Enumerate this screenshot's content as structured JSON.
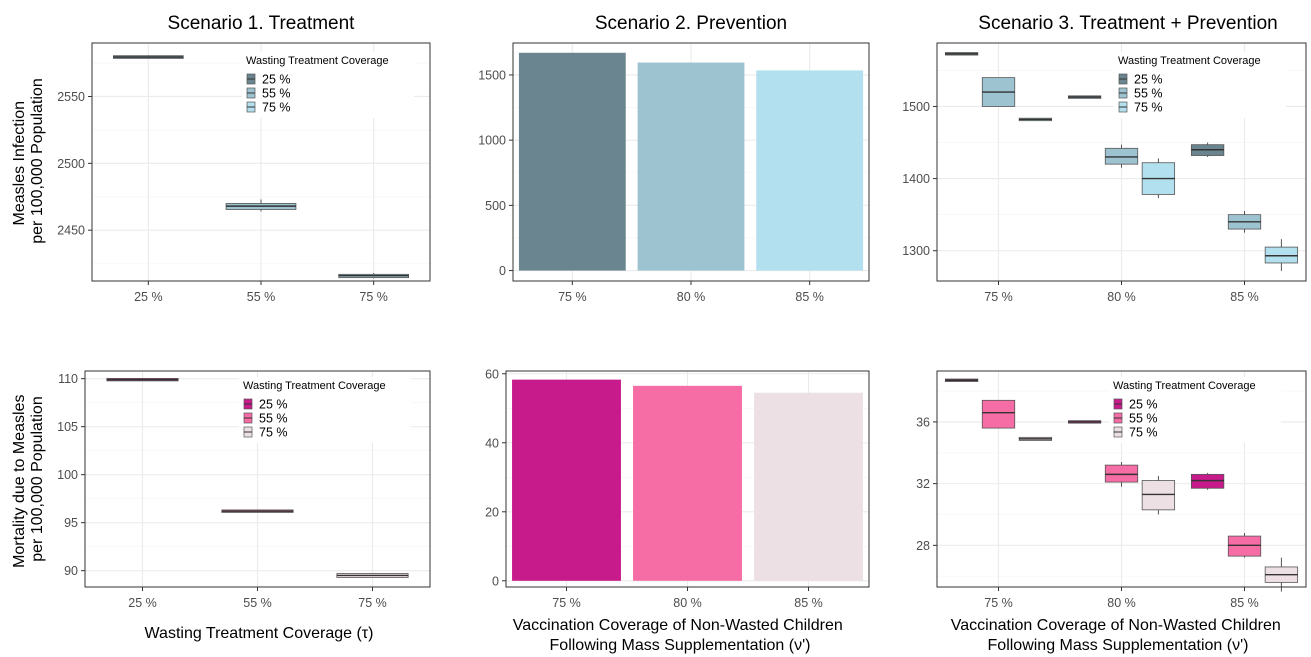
{
  "colors": {
    "infection": [
      "#6b8590",
      "#9dc3d1",
      "#b3e0ee"
    ],
    "mortality": [
      "#c71b8b",
      "#f66ca4",
      "#ede0e5"
    ]
  },
  "row_labels": {
    "infection": [
      "Measles Infection",
      "per 100,000 Population"
    ],
    "mortality": [
      "Mortality due to Measles",
      "per 100,000 Population"
    ]
  },
  "column_titles": [
    "Scenario 1. Treatment",
    "Scenario 2. Prevention",
    "Scenario 3. Treatment + Prevention"
  ],
  "x_axis_labels": {
    "treatment": [
      "Wasting Treatment Coverage (τ)"
    ],
    "vaccination": [
      "Vaccination Coverage of Non-Wasted Children",
      "Following Mass Supplementation (ν')"
    ]
  },
  "legend": {
    "title": "Wasting Treatment Coverage",
    "entries": [
      "25 %",
      "55 %",
      "75 %"
    ]
  },
  "chart_data": [
    {
      "id": "s1-infection",
      "type": "box",
      "title": "Scenario 1. Treatment",
      "categories": [
        "25 %",
        "55 %",
        "75 %"
      ],
      "ylim": [
        2412,
        2590
      ],
      "yticks": [
        2450,
        2500,
        2550
      ],
      "legend": true,
      "legend_position": "top-right",
      "boxes": [
        {
          "category": "25 %",
          "fill": 0,
          "q1": 2578.5,
          "median": 2579.5,
          "q3": 2580.5,
          "min": 2578.5,
          "max": 2580.5
        },
        {
          "category": "55 %",
          "fill": 1,
          "q1": 2465.5,
          "median": 2468,
          "q3": 2470,
          "min": 2464,
          "max": 2473
        },
        {
          "category": "75 %",
          "fill": 1,
          "q1": 2414.5,
          "median": 2416,
          "q3": 2417,
          "min": 2414,
          "max": 2418
        }
      ]
    },
    {
      "id": "s2-infection",
      "type": "bar",
      "title": "Scenario 2. Prevention",
      "categories": [
        "75 %",
        "80 %",
        "85 %"
      ],
      "values": [
        1670,
        1595,
        1535
      ],
      "ylim": [
        -80,
        1745
      ],
      "yticks": [
        0,
        500,
        1000,
        1500
      ]
    },
    {
      "id": "s3-infection",
      "type": "box",
      "title": "Scenario 3. Treatment + Prevention",
      "categories": [
        "75 %",
        "80 %",
        "85 %"
      ],
      "ylim": [
        1258,
        1588
      ],
      "yticks": [
        1300,
        1400,
        1500
      ],
      "legend": true,
      "legend_position": "top-right",
      "boxes": [
        {
          "category": "75 %",
          "slot": 0,
          "fill": 0,
          "q1": 1573,
          "median": 1573,
          "q3": 1573,
          "min": 1573,
          "max": 1573
        },
        {
          "category": "75 %",
          "slot": 1,
          "fill": 1,
          "q1": 1500,
          "median": 1520,
          "q3": 1540,
          "min": 1500,
          "max": 1540
        },
        {
          "category": "75 %",
          "slot": 2,
          "fill": 2,
          "q1": 1482,
          "median": 1482,
          "q3": 1482,
          "min": 1482,
          "max": 1482
        },
        {
          "category": "80 %",
          "slot": 0,
          "fill": 0,
          "q1": 1513,
          "median": 1513,
          "q3": 1513,
          "min": 1513,
          "max": 1513
        },
        {
          "category": "80 %",
          "slot": 1,
          "fill": 1,
          "q1": 1420,
          "median": 1430,
          "q3": 1442,
          "min": 1415,
          "max": 1447
        },
        {
          "category": "80 %",
          "slot": 2,
          "fill": 2,
          "q1": 1378,
          "median": 1400,
          "q3": 1422,
          "min": 1373,
          "max": 1428
        },
        {
          "category": "85 %",
          "slot": 0,
          "fill": 0,
          "q1": 1432,
          "median": 1440,
          "q3": 1447,
          "min": 1430,
          "max": 1450
        },
        {
          "category": "85 %",
          "slot": 1,
          "fill": 1,
          "q1": 1330,
          "median": 1340,
          "q3": 1350,
          "min": 1325,
          "max": 1355
        },
        {
          "category": "85 %",
          "slot": 2,
          "fill": 2,
          "q1": 1283,
          "median": 1293,
          "q3": 1305,
          "min": 1272,
          "max": 1316
        }
      ]
    },
    {
      "id": "s1-mortality",
      "type": "box",
      "categories": [
        "25 %",
        "55 %",
        "75 %"
      ],
      "ylim": [
        88.3,
        110.8
      ],
      "yticks": [
        90,
        95,
        100,
        105,
        110
      ],
      "legend": true,
      "legend_position": "top-right",
      "boxes": [
        {
          "category": "25 %",
          "fill": 0,
          "q1": 109.9,
          "median": 109.9,
          "q3": 109.9,
          "min": 109.9,
          "max": 109.9
        },
        {
          "category": "55 %",
          "fill": 1,
          "q1": 96.1,
          "median": 96.2,
          "q3": 96.3,
          "min": 96.1,
          "max": 96.3
        },
        {
          "category": "75 %",
          "fill": 2,
          "q1": 89.3,
          "median": 89.5,
          "q3": 89.7,
          "min": 89.3,
          "max": 89.7
        }
      ]
    },
    {
      "id": "s2-mortality",
      "type": "bar",
      "categories": [
        "75 %",
        "80 %",
        "85 %"
      ],
      "values": [
        58.3,
        56.5,
        54.5
      ],
      "ylim": [
        -1.8,
        60.8
      ],
      "yticks": [
        0,
        20,
        40,
        60
      ]
    },
    {
      "id": "s3-mortality",
      "type": "box",
      "categories": [
        "75 %",
        "80 %",
        "85 %"
      ],
      "ylim": [
        25.3,
        39.3
      ],
      "yticks": [
        28,
        32,
        36
      ],
      "legend": true,
      "legend_position": "top-right",
      "boxes": [
        {
          "category": "75 %",
          "slot": 0,
          "fill": 0,
          "q1": 38.7,
          "median": 38.7,
          "q3": 38.7,
          "min": 38.7,
          "max": 38.7
        },
        {
          "category": "75 %",
          "slot": 1,
          "fill": 1,
          "q1": 35.6,
          "median": 36.6,
          "q3": 37.4,
          "min": 35.6,
          "max": 37.4
        },
        {
          "category": "75 %",
          "slot": 2,
          "fill": 2,
          "q1": 34.8,
          "median": 34.9,
          "q3": 35.0,
          "min": 34.8,
          "max": 35.0
        },
        {
          "category": "80 %",
          "slot": 0,
          "fill": 0,
          "q1": 36.0,
          "median": 36.0,
          "q3": 36.0,
          "min": 36.0,
          "max": 36.0
        },
        {
          "category": "80 %",
          "slot": 1,
          "fill": 1,
          "q1": 32.1,
          "median": 32.6,
          "q3": 33.2,
          "min": 31.8,
          "max": 33.4
        },
        {
          "category": "80 %",
          "slot": 2,
          "fill": 2,
          "q1": 30.3,
          "median": 31.3,
          "q3": 32.2,
          "min": 30.0,
          "max": 32.5
        },
        {
          "category": "85 %",
          "slot": 0,
          "fill": 0,
          "q1": 31.7,
          "median": 32.2,
          "q3": 32.6,
          "min": 31.6,
          "max": 32.7
        },
        {
          "category": "85 %",
          "slot": 1,
          "fill": 1,
          "q1": 27.3,
          "median": 28.0,
          "q3": 28.6,
          "min": 27.2,
          "max": 28.8
        },
        {
          "category": "85 %",
          "slot": 2,
          "fill": 2,
          "q1": 25.6,
          "median": 26.1,
          "q3": 26.6,
          "min": 25.0,
          "max": 27.2
        }
      ]
    }
  ]
}
